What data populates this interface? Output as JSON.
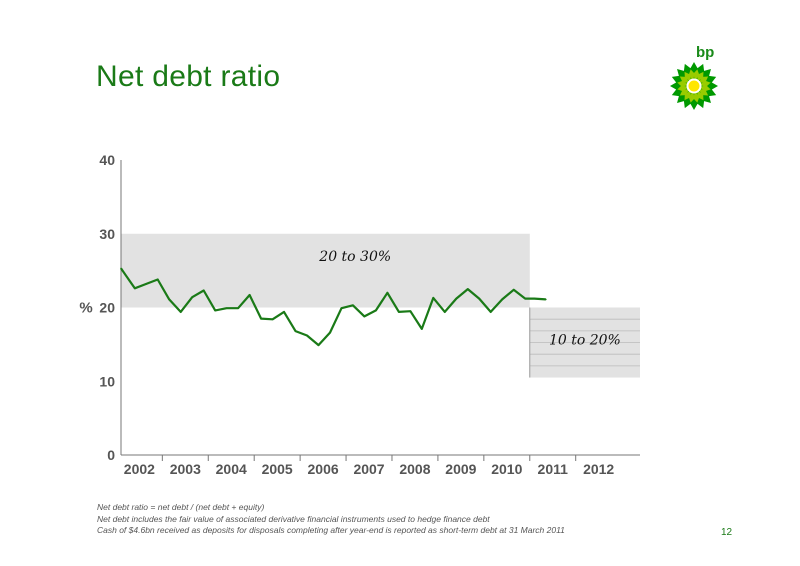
{
  "title": "Net debt ratio",
  "logo": {
    "text": "bp",
    "icon": "bp-helios-logo-icon",
    "colors": [
      "#009900",
      "#99cc00",
      "#ffe600"
    ]
  },
  "page_number": "12",
  "footnotes": [
    "Net debt ratio = net debt / (net debt + equity)",
    "Net debt includes the fair value of associated derivative financial instruments used to hedge finance debt",
    "Cash of $4.6bn received as deposits for disposals completing after year-end is reported as short-term debt at 31 March 2011"
  ],
  "colors": {
    "title": "#1a7a17",
    "line": "#1a7a17",
    "band": "#e2e2e2"
  },
  "chart_data": {
    "type": "line",
    "title": "",
    "xlabel": "",
    "ylabel": "%",
    "ylim": [
      0,
      40
    ],
    "yticks": [
      0,
      10,
      20,
      30,
      40
    ],
    "xlim": [
      2001.6,
      2012.9
    ],
    "categories": [
      "2002",
      "2003",
      "2004",
      "2005",
      "2006",
      "2007",
      "2008",
      "2009",
      "2010",
      "2011",
      "2012"
    ],
    "grid": false,
    "bands": [
      {
        "label": "20 to 30%",
        "x": [
          2001.6,
          2010.5
        ],
        "y": [
          20,
          30
        ],
        "color": "#e2e2e2"
      },
      {
        "label": "10 to 20%",
        "x": [
          2010.5,
          2012.9
        ],
        "y": [
          10.5,
          20
        ],
        "color": "#e2e2e2"
      }
    ],
    "series": [
      {
        "x": [
          2001.6,
          2001.9,
          2002.15,
          2002.4,
          2002.65,
          2002.9,
          2003.15,
          2003.4,
          2003.65,
          2003.9,
          2004.15,
          2004.4,
          2004.65,
          2004.9,
          2005.15,
          2005.4,
          2005.65,
          2005.9,
          2006.15,
          2006.4,
          2006.65,
          2006.9,
          2007.15,
          2007.4,
          2007.65,
          2007.9,
          2008.15,
          2008.4,
          2008.65,
          2008.9,
          2009.15,
          2009.4,
          2009.65,
          2009.9,
          2010.15,
          2010.4,
          2010.6,
          2010.85
        ],
        "values": [
          25.3,
          22.6,
          23.2,
          23.8,
          21.1,
          19.4,
          21.4,
          22.3,
          19.6,
          19.9,
          19.9,
          21.7,
          18.5,
          18.4,
          19.4,
          16.8,
          16.2,
          14.9,
          16.6,
          19.9,
          20.3,
          18.8,
          19.6,
          22.0,
          19.4,
          19.5,
          17.1,
          21.3,
          19.4,
          21.2,
          22.5,
          21.2,
          19.4,
          21.1,
          22.4,
          21.2,
          21.2,
          21.1
        ]
      }
    ]
  }
}
